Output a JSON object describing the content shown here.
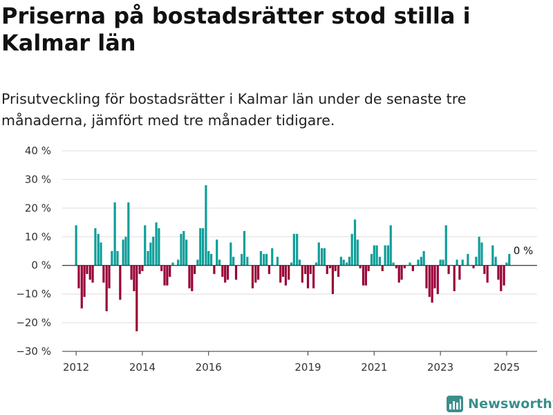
{
  "title": "Priserna på bostadsrätter stod stilla i Kalmar län",
  "subtitle": "Prisutveckling för bostadsrätter i Kalmar län under de senaste tre månaderna, jämfört med tre månader tidigare.",
  "brand": {
    "name": "Newsworthy",
    "icon": "newsworthy-logo-icon"
  },
  "colors": {
    "positive": "#0f9e99",
    "negative": "#990037",
    "grid": "#dddddd",
    "axis": "#333333"
  },
  "chart_data": {
    "type": "bar",
    "ylim": [
      -30,
      40
    ],
    "y_ticks": [
      40,
      30,
      20,
      10,
      0,
      -10,
      -20,
      -30
    ],
    "y_tick_labels": [
      "40 %",
      "30 %",
      "20 %",
      "10 %",
      "0 %",
      "−10 %",
      "−20 %",
      "−30 %"
    ],
    "x_ticks": [
      2012,
      2014,
      2016,
      2019,
      2021,
      2023,
      2025
    ],
    "x_tick_labels": [
      "2012",
      "2014",
      "2016",
      "2019",
      "2021",
      "2023",
      "2025"
    ],
    "x_range": [
      2011.58,
      2025.92
    ],
    "grid": true,
    "annotation": {
      "label": "0 %",
      "x": 2025.21
    },
    "x": [
      2012.0,
      2012.08,
      2012.17,
      2012.25,
      2012.33,
      2012.42,
      2012.5,
      2012.58,
      2012.67,
      2012.75,
      2012.83,
      2012.92,
      2013.0,
      2013.08,
      2013.17,
      2013.25,
      2013.33,
      2013.42,
      2013.5,
      2013.58,
      2013.67,
      2013.75,
      2013.83,
      2013.92,
      2014.0,
      2014.08,
      2014.17,
      2014.25,
      2014.33,
      2014.42,
      2014.5,
      2014.58,
      2014.67,
      2014.75,
      2014.83,
      2014.92,
      2015.0,
      2015.08,
      2015.17,
      2015.25,
      2015.33,
      2015.42,
      2015.5,
      2015.58,
      2015.67,
      2015.75,
      2015.83,
      2015.92,
      2016.0,
      2016.08,
      2016.17,
      2016.25,
      2016.33,
      2016.42,
      2016.5,
      2016.58,
      2016.67,
      2016.75,
      2016.83,
      2016.92,
      2017.0,
      2017.08,
      2017.17,
      2017.25,
      2017.33,
      2017.42,
      2017.5,
      2017.58,
      2017.67,
      2017.75,
      2017.83,
      2017.92,
      2018.0,
      2018.08,
      2018.17,
      2018.25,
      2018.33,
      2018.42,
      2018.5,
      2018.58,
      2018.67,
      2018.75,
      2018.83,
      2018.92,
      2019.0,
      2019.08,
      2019.17,
      2019.25,
      2019.33,
      2019.42,
      2019.5,
      2019.58,
      2019.67,
      2019.75,
      2019.83,
      2019.92,
      2020.0,
      2020.08,
      2020.17,
      2020.25,
      2020.33,
      2020.42,
      2020.5,
      2020.58,
      2020.67,
      2020.75,
      2020.83,
      2020.92,
      2021.0,
      2021.08,
      2021.17,
      2021.25,
      2021.33,
      2021.42,
      2021.5,
      2021.58,
      2021.67,
      2021.75,
      2021.83,
      2021.92,
      2022.0,
      2022.08,
      2022.17,
      2022.25,
      2022.33,
      2022.42,
      2022.5,
      2022.58,
      2022.67,
      2022.75,
      2022.83,
      2022.92,
      2023.0,
      2023.08,
      2023.17,
      2023.25,
      2023.33,
      2023.42,
      2023.5,
      2023.58,
      2023.67,
      2023.75,
      2023.83,
      2023.92,
      2024.0,
      2024.08,
      2024.17,
      2024.25,
      2024.33,
      2024.42,
      2024.5,
      2024.58,
      2024.67,
      2024.75,
      2024.83,
      2024.92,
      2025.0,
      2025.08,
      2025.17,
      2025.25
    ],
    "values": [
      14,
      -8,
      -15,
      -11,
      -3,
      -5,
      -6,
      13,
      11,
      8,
      -6,
      -16,
      -8,
      5,
      22,
      5,
      -12,
      9,
      10,
      22,
      -5,
      -9,
      -23,
      -3,
      -2,
      14,
      5,
      8,
      10,
      15,
      13,
      -2,
      -7,
      -7,
      -4,
      1,
      0,
      2,
      11,
      12,
      9,
      -8,
      -9,
      -3,
      2,
      13,
      13,
      28,
      5,
      4,
      -3,
      9,
      2,
      -4,
      -6,
      -5,
      8,
      3,
      -5,
      0,
      4,
      12,
      3,
      0,
      -8,
      -6,
      -5,
      5,
      4,
      4,
      -3,
      6,
      0,
      3,
      -6,
      -4,
      -7,
      -5,
      1,
      11,
      11,
      2,
      -6,
      -3,
      -8,
      -3,
      -8,
      1,
      8,
      6,
      6,
      -3,
      -1,
      -10,
      -2,
      -4,
      3,
      2,
      1,
      3,
      11,
      16,
      9,
      -1,
      -7,
      -7,
      -2,
      4,
      7,
      7,
      3,
      -2,
      7,
      7,
      14,
      1,
      -1,
      -6,
      -5,
      -1,
      0,
      1,
      -2,
      0,
      2,
      3,
      5,
      -8,
      -11,
      -13,
      -8,
      -10,
      2,
      2,
      14,
      -3,
      0,
      -9,
      2,
      -5,
      2,
      0,
      4,
      0,
      -1,
      3,
      10,
      8,
      -3,
      -6,
      0,
      7,
      3,
      -5,
      -9,
      -7,
      1,
      4,
      0,
      0
    ]
  }
}
